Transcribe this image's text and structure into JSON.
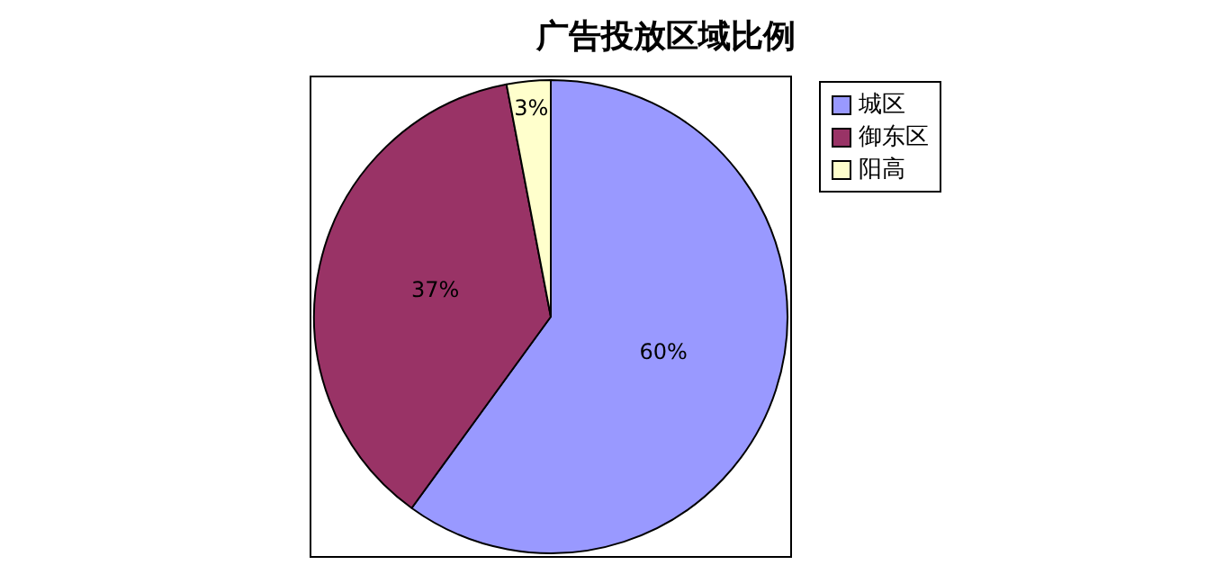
{
  "chart_data": {
    "type": "pie",
    "title": "广告投放区域比例",
    "categories": [
      "城区",
      "御东区",
      "阳高"
    ],
    "values": [
      60,
      37,
      3
    ],
    "colors": [
      "#9999ff",
      "#993366",
      "#ffffcc"
    ],
    "value_labels": [
      "60%",
      "37%",
      "3%"
    ],
    "legend": "right"
  }
}
